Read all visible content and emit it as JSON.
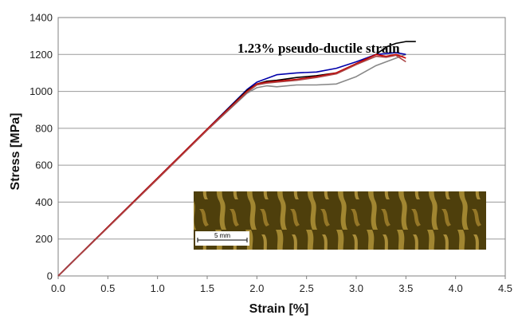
{
  "chart_data": {
    "type": "line",
    "title": "",
    "xlabel": "Strain [%]",
    "ylabel": "Stress [MPa]",
    "xlim": [
      0,
      4.5
    ],
    "ylim": [
      0,
      1400
    ],
    "xticks": [
      "0.0",
      "0.5",
      "1.0",
      "1.5",
      "2.0",
      "2.5",
      "3.0",
      "3.5",
      "4.0",
      "4.5"
    ],
    "yticks": [
      "0",
      "200",
      "400",
      "600",
      "800",
      "1000",
      "1200",
      "1400"
    ],
    "grid": "horizontal",
    "legend": "none",
    "annotation": "1.23% pseudo-ductile strain",
    "inset": {
      "scale_bar_label": "5 mm"
    },
    "series": [
      {
        "color": "#888888",
        "x": [
          0,
          0.5,
          1.0,
          1.5,
          1.9,
          2.0,
          2.1,
          2.2,
          2.4,
          2.6,
          2.8,
          3.0,
          3.2,
          3.4,
          3.5
        ],
        "y": [
          0,
          265,
          530,
          790,
          990,
          1020,
          1030,
          1025,
          1035,
          1035,
          1040,
          1080,
          1140,
          1180,
          1200
        ]
      },
      {
        "color": "#0000aa",
        "x": [
          0,
          0.5,
          1.0,
          1.5,
          1.9,
          2.0,
          2.1,
          2.2,
          2.4,
          2.6,
          2.8,
          3.0,
          3.2,
          3.4,
          3.5
        ],
        "y": [
          0,
          265,
          530,
          795,
          1010,
          1050,
          1070,
          1090,
          1100,
          1105,
          1125,
          1160,
          1200,
          1210,
          1200
        ]
      },
      {
        "color": "#000000",
        "x": [
          0,
          0.5,
          1.0,
          1.5,
          1.9,
          2.0,
          2.1,
          2.2,
          2.4,
          2.6,
          2.8,
          3.0,
          3.2,
          3.3,
          3.4,
          3.5,
          3.6
        ],
        "y": [
          0,
          265,
          530,
          795,
          1005,
          1040,
          1055,
          1060,
          1075,
          1085,
          1100,
          1150,
          1200,
          1240,
          1260,
          1270,
          1270
        ]
      },
      {
        "color": "#cc0000",
        "x": [
          0,
          0.5,
          1.0,
          1.5,
          1.9,
          2.0,
          2.1,
          2.2,
          2.4,
          2.6,
          2.8,
          3.0,
          3.2,
          3.3,
          3.4,
          3.5
        ],
        "y": [
          0,
          265,
          530,
          795,
          1000,
          1040,
          1050,
          1055,
          1065,
          1080,
          1100,
          1150,
          1200,
          1190,
          1200,
          1180
        ]
      },
      {
        "color": "#aa4444",
        "x": [
          0,
          0.5,
          1.0,
          1.5,
          1.9,
          2.0,
          2.1,
          2.2,
          2.4,
          2.6,
          2.8,
          3.0,
          3.2,
          3.3,
          3.4,
          3.5
        ],
        "y": [
          0,
          262,
          525,
          790,
          995,
          1035,
          1045,
          1050,
          1060,
          1075,
          1095,
          1145,
          1190,
          1185,
          1195,
          1160
        ]
      }
    ]
  }
}
